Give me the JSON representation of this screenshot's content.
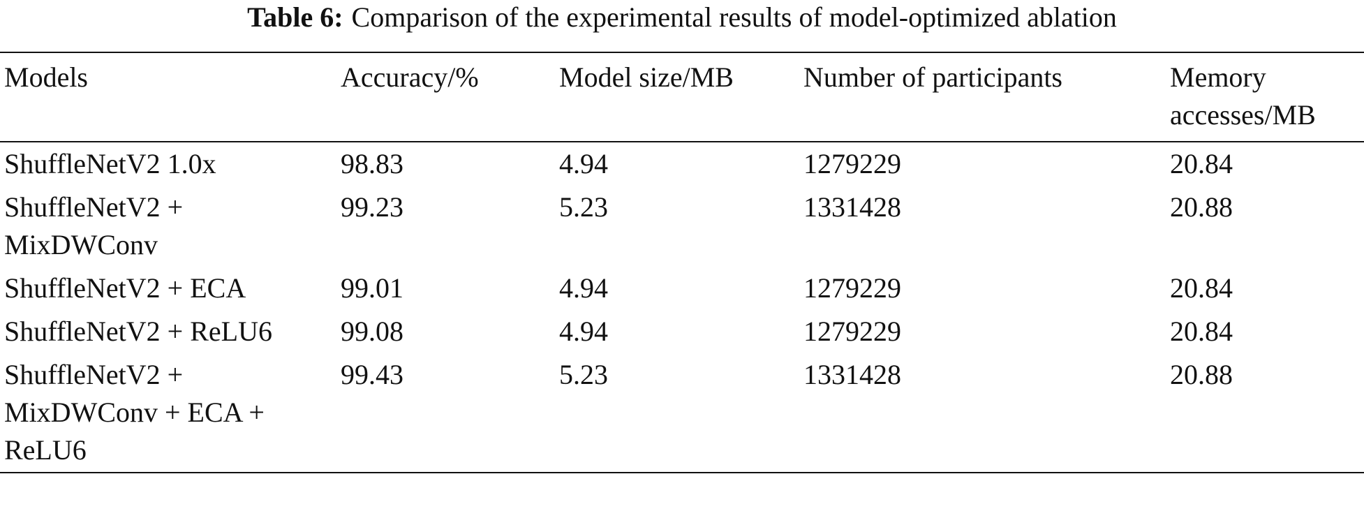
{
  "caption": {
    "label": "Table 6:",
    "text": "Comparison of the experimental results of model-optimized ablation"
  },
  "table": {
    "header": [
      "Models",
      "Accuracy/%",
      "Model size/MB",
      "Number of participants",
      "Memory accesses/MB"
    ],
    "rows": [
      [
        "ShuffleNetV2 1.0x",
        "98.83",
        "4.94",
        "1279229",
        "20.84"
      ],
      [
        "ShuffleNetV2 + MixDWConv",
        "99.23",
        "5.23",
        "1331428",
        "20.88"
      ],
      [
        "ShuffleNetV2 + ECA",
        "99.01",
        "4.94",
        "1279229",
        "20.84"
      ],
      [
        "ShuffleNetV2 + ReLU6",
        "99.08",
        "4.94",
        "1279229",
        "20.84"
      ],
      [
        "ShuffleNetV2 + MixDWConv + ECA + ReLU6",
        "99.43",
        "5.23",
        "1331428",
        "20.88"
      ]
    ]
  }
}
